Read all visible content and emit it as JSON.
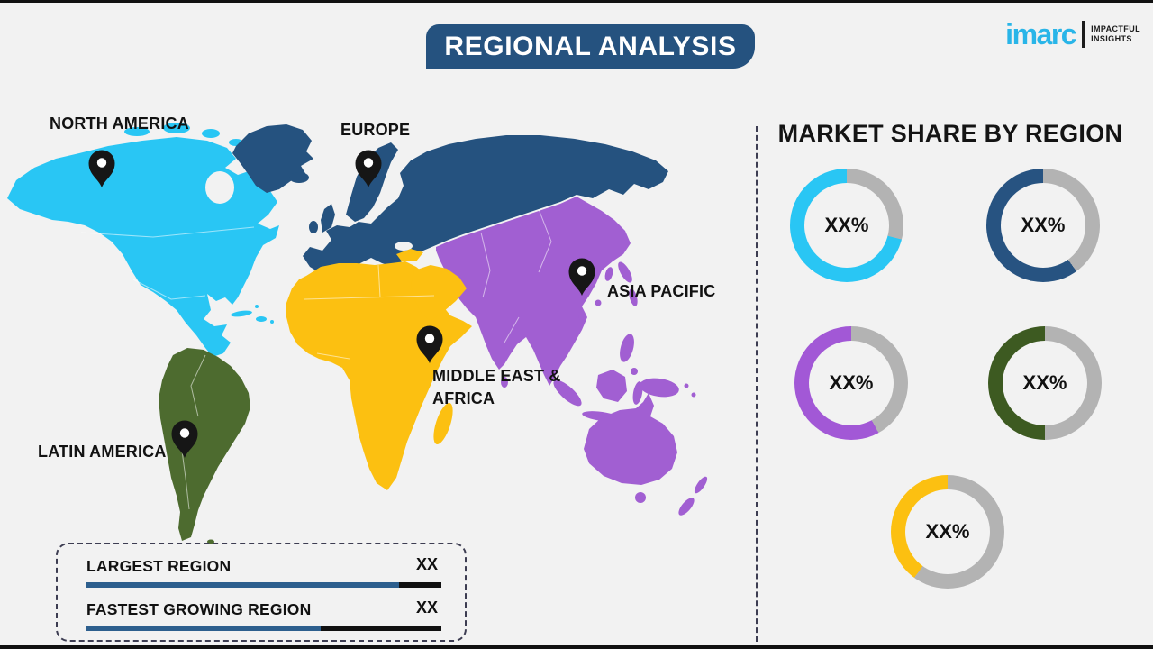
{
  "page": {
    "bg": "#f2f2f2",
    "top_bar_color": "#111111",
    "bottom_bar_color": "#111111"
  },
  "header": {
    "title": "REGIONAL ANALYSIS",
    "banner_color": "#25527f",
    "text_color": "#ffffff"
  },
  "logo": {
    "brand": "imarc",
    "brand_color": "#29b5e8",
    "tagline_line1": "IMPACTFUL",
    "tagline_line2": "INSIGHTS"
  },
  "map": {
    "pin_color": "#161616",
    "regions": [
      {
        "name": "North America",
        "label": "NORTH AMERICA",
        "color": "#29c6f4"
      },
      {
        "name": "Europe",
        "label": "EUROPE",
        "color": "#25527f"
      },
      {
        "name": "Asia Pacific",
        "label": "ASIA PACIFIC",
        "color": "#a15fd2"
      },
      {
        "name": "Middle East & Africa",
        "label_line1": "MIDDLE EAST &",
        "label_line2": "AFRICA",
        "color": "#fcc011"
      },
      {
        "name": "Latin America",
        "label": "LATIN AMERICA",
        "color": "#4d6b2f"
      }
    ]
  },
  "market_share": {
    "title": "MARKET SHARE BY REGION",
    "track_color": "#b3b3b3"
  },
  "chart_data": {
    "type": "pie",
    "title": "MARKET SHARE BY REGION",
    "legend_position": "none",
    "donuts": [
      {
        "region": "North America",
        "label": "XX%",
        "color": "#29c6f4",
        "colored_pct": 71
      },
      {
        "region": "Europe",
        "label": "XX%",
        "color": "#275381",
        "colored_pct": 60
      },
      {
        "region": "Asia Pacific",
        "label": "XX%",
        "color": "#a258d6",
        "colored_pct": 58
      },
      {
        "region": "Latin America",
        "label": "XX%",
        "color": "#3d5a21",
        "colored_pct": 50
      },
      {
        "region": "Middle East & Africa",
        "label": "XX%",
        "color": "#fcc011",
        "colored_pct": 40
      }
    ]
  },
  "legend": {
    "items": [
      {
        "label": "LARGEST REGION",
        "value": "XX",
        "fill_pct": 88
      },
      {
        "label": "FASTEST GROWING REGION",
        "value": "XX",
        "fill_pct": 66
      }
    ],
    "bar_fill_color": "#2d5f8e",
    "bar_track_color": "#111111"
  }
}
